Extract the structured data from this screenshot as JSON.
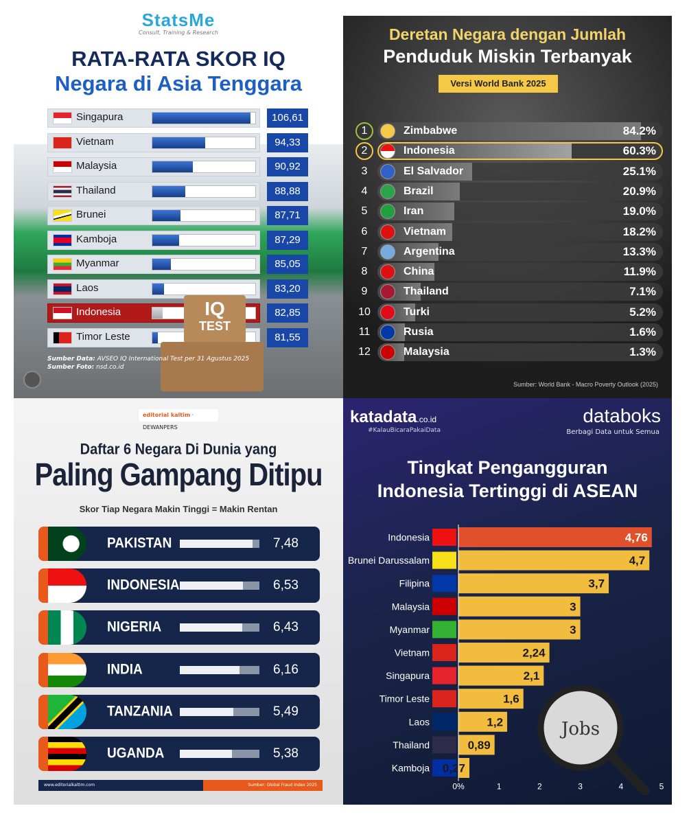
{
  "chart_data": [
    {
      "type": "bar",
      "title": "RATA-RATA SKOR IQ",
      "subtitle": "Negara di Asia Tenggara",
      "categories": [
        "Singapura",
        "Vietnam",
        "Malaysia",
        "Thailand",
        "Brunei",
        "Kamboja",
        "Myanmar",
        "Laos",
        "Indonesia",
        "Timor Leste"
      ],
      "values": [
        "106,61",
        "94,33",
        "90,92",
        "88,88",
        "87,71",
        "87,29",
        "85,05",
        "83,20",
        "82,85",
        "81,55"
      ],
      "numeric": [
        106.61,
        94.33,
        90.92,
        88.88,
        87.71,
        87.29,
        85.05,
        83.2,
        82.85,
        81.55
      ],
      "highlight": "Indonesia",
      "source_label": "Sumber Data:",
      "source_text": "AVSEO IQ International Test per 31 Agustus 2025",
      "photo_label": "Sumber Foto:",
      "photo_text": "nsd.co.id",
      "brand": "StatsMe",
      "brand_tag": "Consult, Training & Research",
      "iq_top": "IQ",
      "iq_bottom": "TEST"
    },
    {
      "type": "bar",
      "title": "Deretan Negara dengan Jumlah",
      "subtitle": "Penduduk Miskin Terbanyak",
      "version": "Versi World Bank 2025",
      "ranks": [
        "1",
        "2",
        "3",
        "4",
        "5",
        "6",
        "7",
        "8",
        "9",
        "10",
        "11",
        "12"
      ],
      "categories": [
        "Zimbabwe",
        "Indonesia",
        "El Salvador",
        "Brazil",
        "Iran",
        "Vietnam",
        "Argentina",
        "China",
        "Thailand",
        "Turki",
        "Rusia",
        "Malaysia"
      ],
      "values": [
        "84.2%",
        "60.3%",
        "25.1%",
        "20.9%",
        "19.0%",
        "18.2%",
        "13.3%",
        "11.9%",
        "7.1%",
        "5.2%",
        "1.6%",
        "1.3%"
      ],
      "numeric": [
        84.2,
        60.3,
        25.1,
        20.9,
        19.0,
        18.2,
        13.3,
        11.9,
        7.1,
        5.2,
        1.6,
        1.3
      ],
      "highlight": "Indonesia",
      "source": "Sumber: World Bank - Macro Poverty Outlook (2025)"
    },
    {
      "type": "bar",
      "title": "Daftar 6 Negara Di Dunia yang",
      "subtitle": "Paling Gampang Ditipu",
      "note": "Skor Tiap Negara Makin Tinggi = Makin Rentan",
      "categories": [
        "PAKISTAN",
        "INDONESIA",
        "NIGERIA",
        "INDIA",
        "TANZANIA",
        "UGANDA"
      ],
      "values": [
        "7,48",
        "6,53",
        "6,43",
        "6,16",
        "5,49",
        "5,38"
      ],
      "numeric": [
        7.48,
        6.53,
        6.43,
        6.16,
        5.49,
        5.38
      ],
      "logo_a": "editorial kaltim",
      "logo_b": "DEWANPERS",
      "footer_left": "www.editorialkaltim.com",
      "footer_right": "Sumber: Global Fraud Index 2025"
    },
    {
      "type": "bar",
      "title": "Tingkat Pengangguran",
      "subtitle": "Indonesia Tertinggi di ASEAN",
      "categories": [
        "Indonesia",
        "Brunei Darussalam",
        "Filipina",
        "Malaysia",
        "Myanmar",
        "Vietnam",
        "Singapura",
        "Timor Leste",
        "Laos",
        "Thailand",
        "Kamboja"
      ],
      "values": [
        "4,76",
        "4,7",
        "3,7",
        "3",
        "3",
        "2,24",
        "2,1",
        "1,6",
        "1,2",
        "0,89",
        "0,27"
      ],
      "numeric": [
        4.76,
        4.7,
        3.7,
        3,
        3,
        2.24,
        2.1,
        1.6,
        1.2,
        0.89,
        0.27
      ],
      "xticks": [
        "0%",
        "1",
        "2",
        "3",
        "4",
        "5"
      ],
      "xlim": [
        0,
        5
      ],
      "highlight": "Indonesia",
      "brand_left": "katadata",
      "brand_left_suffix": ".co.id",
      "brand_left_tag": "#KalauBicaraPakaiData",
      "brand_right": "databoks",
      "brand_right_tag": "Berbagi Data untuk Semua",
      "photo_text": "Jobs"
    }
  ],
  "colors": {
    "p1_bar": "#1847a8",
    "p1_highlight": "#b21a1a",
    "p2_gold": "#f5c945",
    "p3_navy": "#16254a",
    "p3_orange": "#e85a1b",
    "p4_top": "#e0502a",
    "p4_bar": "#f2bd3f"
  }
}
